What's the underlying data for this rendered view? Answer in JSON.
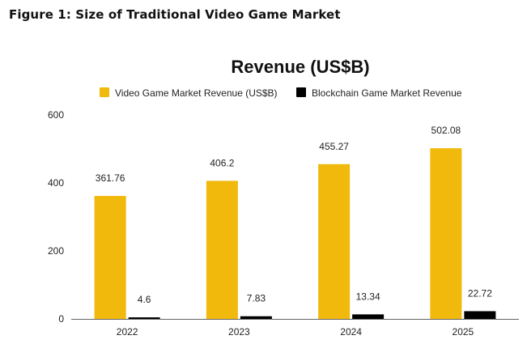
{
  "figure_heading": "Figure 1: Size of Traditional Video Game Market",
  "chart_data": {
    "type": "bar",
    "title": "Revenue (US$B)",
    "categories": [
      "2022",
      "2023",
      "2024",
      "2025"
    ],
    "series": [
      {
        "name": "Video Game Market Revenue (US$B)",
        "color": "#f0b90b",
        "values": [
          361.76,
          406.2,
          455.27,
          502.08
        ]
      },
      {
        "name": "Blockchain Game Market Revenue",
        "color": "#000000",
        "values": [
          4.6,
          7.83,
          13.34,
          22.72
        ]
      }
    ],
    "data_labels": [
      [
        "361.76",
        "406.2",
        "455.27",
        "502.08"
      ],
      [
        "4.6",
        "7.83",
        "13.34",
        "22.72"
      ]
    ],
    "yticks": [
      "0",
      "200",
      "400",
      "600"
    ],
    "ylim": [
      0,
      600
    ],
    "xlabel": "",
    "ylabel": "",
    "legend_position": "top",
    "grid": false,
    "axis_color": "#666666"
  }
}
